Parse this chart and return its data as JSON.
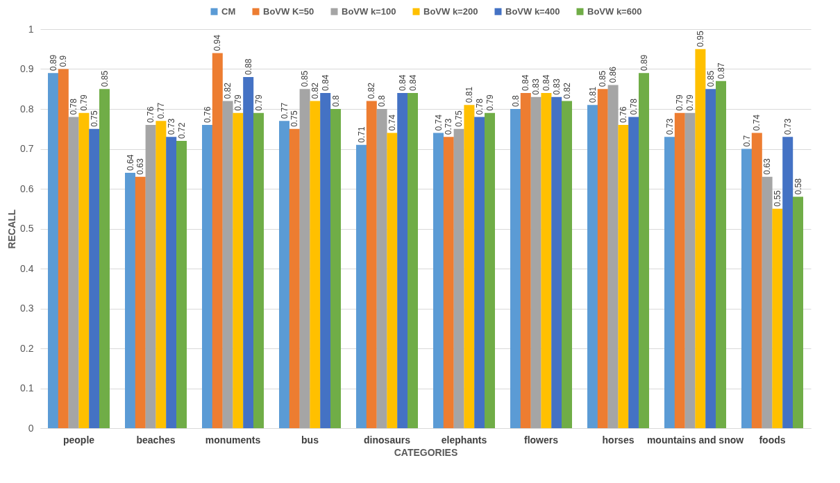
{
  "chart_data": {
    "type": "bar",
    "xlabel": "CATEGORIES",
    "ylabel": "RECALL",
    "categories": [
      "people",
      "beaches",
      "monuments",
      "bus",
      "dinosaurs",
      "elephants",
      "flowers",
      "horses",
      "mountains and snow",
      "foods"
    ],
    "series": [
      {
        "name": "CM",
        "color": "#5b9bd5",
        "values": [
          0.89,
          0.64,
          0.76,
          0.77,
          0.71,
          0.74,
          0.8,
          0.81,
          0.73,
          0.7
        ]
      },
      {
        "name": "BoVW K=50",
        "color": "#ed7d31",
        "values": [
          0.9,
          0.63,
          0.94,
          0.75,
          0.82,
          0.73,
          0.84,
          0.85,
          0.79,
          0.74
        ]
      },
      {
        "name": "BoVW k=100",
        "color": "#a5a5a5",
        "values": [
          0.78,
          0.76,
          0.82,
          0.85,
          0.8,
          0.75,
          0.83,
          0.86,
          0.79,
          0.63
        ]
      },
      {
        "name": "BoVW k=200",
        "color": "#ffc000",
        "values": [
          0.79,
          0.77,
          0.79,
          0.82,
          0.74,
          0.81,
          0.84,
          0.76,
          0.95,
          0.55
        ]
      },
      {
        "name": "BoVW k=400",
        "color": "#4472c4",
        "values": [
          0.75,
          0.73,
          0.88,
          0.84,
          0.84,
          0.78,
          0.83,
          0.78,
          0.85,
          0.73
        ]
      },
      {
        "name": "BoVW k=600",
        "color": "#70ad47",
        "values": [
          0.85,
          0.72,
          0.79,
          0.8,
          0.84,
          0.79,
          0.82,
          0.89,
          0.87,
          0.58
        ]
      }
    ],
    "ylim": [
      0,
      1
    ],
    "yticks": [
      0,
      0.1,
      0.2,
      0.3,
      0.4,
      0.5,
      0.6,
      0.7,
      0.8,
      0.9,
      1
    ],
    "grid": "y",
    "legend": "top",
    "data_labels": true
  }
}
